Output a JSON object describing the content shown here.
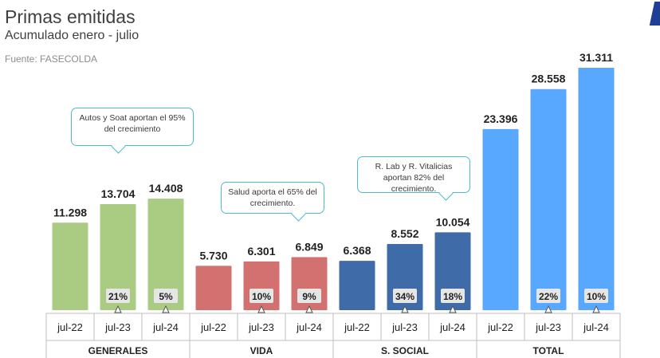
{
  "header": {
    "title": "Primas emitidas",
    "subtitle": "Acumulado enero - julio",
    "source": "Fuente: FASECOLDA"
  },
  "callouts": [
    {
      "text": "Autos y Soat aportan el 95% del crecimiento"
    },
    {
      "text": "Salud aporta el 65% del crecimiento."
    },
    {
      "text": "R. Lab y R. Vitalicias aportan 82% del crecimiento."
    }
  ],
  "chart_data": {
    "type": "bar",
    "groups": [
      {
        "name": "GENERALES",
        "color": "#a9cc82",
        "categories": [
          "jul-22",
          "jul-23",
          "jul-24"
        ],
        "values": [
          11298,
          13704,
          14408
        ],
        "value_labels": [
          "11.298",
          "13.704",
          "14.408"
        ],
        "growth": [
          "",
          "21%",
          "5%"
        ]
      },
      {
        "name": "VIDA",
        "color": "#d37070",
        "categories": [
          "jul-22",
          "jul-23",
          "jul-24"
        ],
        "values": [
          5730,
          6301,
          6849
        ],
        "value_labels": [
          "5.730",
          "6.301",
          "6.849"
        ],
        "growth": [
          "",
          "10%",
          "9%"
        ]
      },
      {
        "name": "S. SOCIAL",
        "color": "#3f6ba8",
        "categories": [
          "jul-22",
          "jul-23",
          "jul-24"
        ],
        "values": [
          6368,
          8552,
          10054
        ],
        "value_labels": [
          "6.368",
          "8.552",
          "10.054"
        ],
        "growth": [
          "",
          "34%",
          "18%"
        ]
      },
      {
        "name": "TOTAL",
        "color": "#59a8ff",
        "categories": [
          "jul-22",
          "jul-23",
          "jul-24"
        ],
        "values": [
          23396,
          28558,
          31311
        ],
        "value_labels": [
          "23.396",
          "28.558",
          "31.311"
        ],
        "growth": [
          "",
          "22%",
          "10%"
        ]
      }
    ],
    "ylim": [
      0,
      31311
    ],
    "grid": false,
    "legend": "none"
  }
}
